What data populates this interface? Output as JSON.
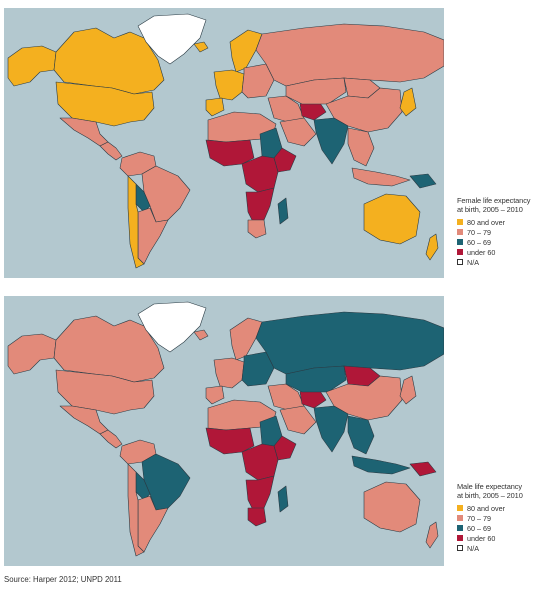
{
  "colors": {
    "ocean": "#b3c8cf",
    "cat_80_over": "#f4b01f",
    "cat_70_79": "#e28a7a",
    "cat_60_69": "#1d6373",
    "cat_under_60": "#b01738",
    "cat_na": "#ffffff"
  },
  "maps": [
    {
      "id": "female",
      "legend_title_line1": "Female life expectancy",
      "legend_title_line2": "at birth, 2005 – 2010",
      "regions": {
        "greenland": "na",
        "canada": "80_over",
        "usa": "80_over",
        "alaska": "80_over",
        "mexico": "70_79",
        "central_america": "70_79",
        "brazil": "70_79",
        "south_america_north": "70_79",
        "south_america_south": "70_79",
        "chile": "80_over",
        "bolivia": "60_69",
        "iceland": "80_over",
        "scandinavia": "80_over",
        "western_europe": "80_over",
        "iberia": "80_over",
        "eastern_europe": "70_79",
        "russia": "70_79",
        "north_africa": "70_79",
        "west_africa": "under_60",
        "central_africa": "under_60",
        "sudan": "60_69",
        "ethiopia": "under_60",
        "southern_africa": "under_60",
        "south_africa": "70_79",
        "madagascar": "60_69",
        "middle_east": "70_79",
        "arabia": "70_79",
        "afghanistan": "under_60",
        "central_asia": "70_79",
        "mongolia": "70_79",
        "china": "70_79",
        "india": "60_69",
        "southeast_asia": "70_79",
        "indonesia": "70_79",
        "japan": "80_over",
        "australia": "80_over",
        "new_zealand": "80_over",
        "papua": "60_69"
      }
    },
    {
      "id": "male",
      "legend_title_line1": "Male life expectancy",
      "legend_title_line2": "at birth, 2005 – 2010",
      "regions": {
        "greenland": "na",
        "canada": "70_79",
        "usa": "70_79",
        "alaska": "70_79",
        "mexico": "70_79",
        "central_america": "70_79",
        "brazil": "60_69",
        "south_america_north": "70_79",
        "south_america_south": "70_79",
        "chile": "70_79",
        "bolivia": "60_69",
        "iceland": "70_79",
        "scandinavia": "70_79",
        "western_europe": "70_79",
        "iberia": "70_79",
        "eastern_europe": "60_69",
        "russia": "60_69",
        "north_africa": "70_79",
        "west_africa": "under_60",
        "central_africa": "under_60",
        "sudan": "60_69",
        "ethiopia": "under_60",
        "southern_africa": "under_60",
        "south_africa": "under_60",
        "madagascar": "60_69",
        "middle_east": "70_79",
        "arabia": "70_79",
        "afghanistan": "under_60",
        "central_asia": "60_69",
        "mongolia": "under_60",
        "china": "70_79",
        "india": "60_69",
        "southeast_asia": "60_69",
        "indonesia": "60_69",
        "japan": "70_79",
        "australia": "70_79",
        "new_zealand": "70_79",
        "papua": "under_60"
      }
    }
  ],
  "legend_items": [
    {
      "key": "80_over",
      "label": "80 and over"
    },
    {
      "key": "70_79",
      "label": "70 – 79"
    },
    {
      "key": "60_69",
      "label": "60 – 69"
    },
    {
      "key": "under_60",
      "label": "under 60"
    },
    {
      "key": "na",
      "label": "N/A"
    }
  ],
  "source": "Source: Harper 2012; UNPD 2011"
}
